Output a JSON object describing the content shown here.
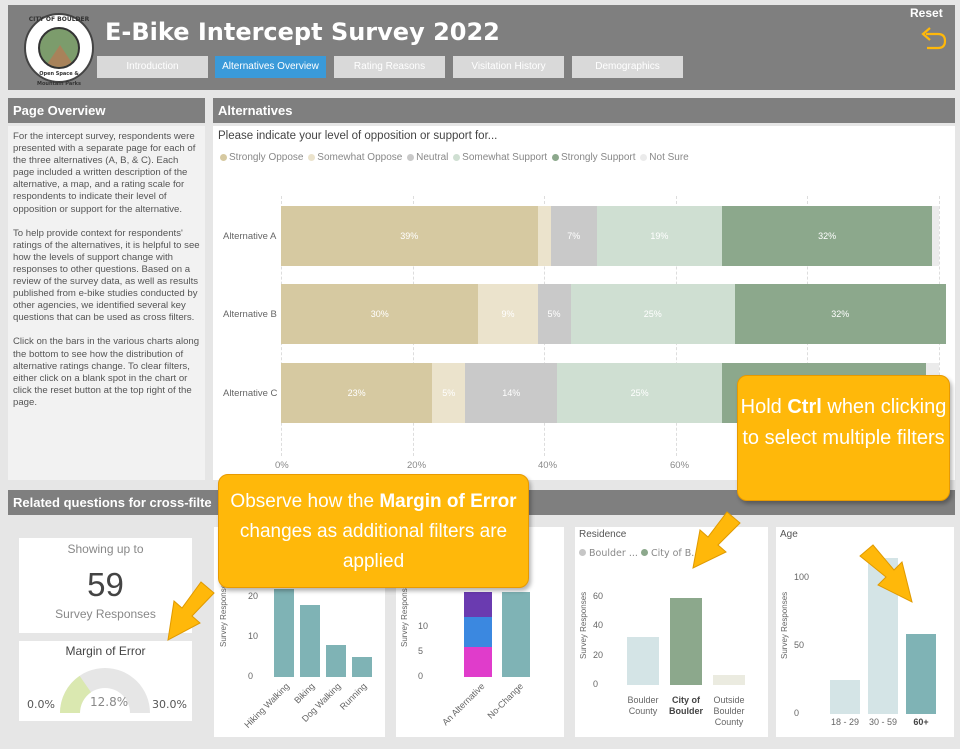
{
  "header": {
    "title": "E-Bike Intercept Survey 2022",
    "logo_text_top": "CITY OF BOULDER",
    "logo_text_bottom": "Open Space & Mountain Parks",
    "tabs": [
      {
        "label": "Introduction",
        "active": false
      },
      {
        "label": "Alternatives Overview",
        "active": true
      },
      {
        "label": "Rating Reasons",
        "active": false
      },
      {
        "label": "Visitation History",
        "active": false
      },
      {
        "label": "Demographics",
        "active": false
      }
    ],
    "reset_label": "Reset",
    "reset_icon": "undo-arrow-icon"
  },
  "overview": {
    "title": "Page Overview",
    "paragraphs": [
      "For the intercept survey, respondents were presented with a separate page for each of the three alternatives (A, B, & C). Each page included a written description of the alternative, a map, and a rating scale for respondents to indicate their level of opposition or support for the alternative.",
      "To help provide context for respondents' ratings of the alternatives, it is helpful to see how the levels of support change with responses to other questions. Based on a review of the survey data, as well as results published from e-bike studies conducted by other agencies, we identified several key questions that can be used as cross filters.",
      "Click on the bars in the various charts along the bottom to see how the distribution of alternative ratings change. To clear filters, either click on a blank spot in the chart or click the reset button at the top right of the page."
    ]
  },
  "alternatives": {
    "title": "Alternatives",
    "question": "Please indicate your level of opposition or support for...",
    "legend": [
      {
        "label": "Strongly Oppose",
        "color": "#d6c9a1"
      },
      {
        "label": "Somewhat Oppose",
        "color": "#ebe3cc"
      },
      {
        "label": "Neutral",
        "color": "#c9c9c9"
      },
      {
        "label": "Somewhat Support",
        "color": "#cfdfd2"
      },
      {
        "label": "Strongly Support",
        "color": "#8ca88c"
      },
      {
        "label": "Not Sure",
        "color": "#ebebeb"
      }
    ],
    "x_ticks": [
      "0%",
      "20%",
      "40%",
      "60%"
    ]
  },
  "chart_data": [
    {
      "type": "bar",
      "orientation": "horizontal-stacked-100",
      "title": "Please indicate your level of opposition or support for...",
      "categories": [
        "Alternative A",
        "Alternative B",
        "Alternative C"
      ],
      "series": [
        {
          "name": "Strongly Oppose",
          "values": [
            39,
            30,
            23
          ],
          "labels": [
            "39%",
            "30%",
            "23%"
          ]
        },
        {
          "name": "Somewhat Oppose",
          "values": [
            2,
            9,
            5
          ],
          "labels": [
            "",
            "9%",
            "5%"
          ]
        },
        {
          "name": "Neutral",
          "values": [
            7,
            5,
            14
          ],
          "labels": [
            "7%",
            "5%",
            "14%"
          ]
        },
        {
          "name": "Somewhat Support",
          "values": [
            19,
            25,
            25
          ],
          "labels": [
            "19%",
            "25%",
            "25%"
          ]
        },
        {
          "name": "Strongly Support",
          "values": [
            32,
            32,
            31
          ],
          "labels": [
            "32%",
            "32%",
            ""
          ]
        },
        {
          "name": "Not Sure",
          "values": [
            1,
            0,
            2
          ],
          "labels": [
            "",
            "",
            ""
          ]
        }
      ]
    },
    {
      "type": "bar",
      "title": "",
      "ylabel": "Survey Responses",
      "categories": [
        "Hiking Walking",
        "Biking",
        "Dog Walking",
        "Running"
      ],
      "values": [
        22,
        18,
        8,
        5
      ],
      "y_ticks": [
        "0",
        "10",
        "20"
      ],
      "ylim": [
        0,
        25
      ]
    },
    {
      "type": "bar",
      "title": "",
      "ylabel": "Survey Responses",
      "categories": [
        "An Alternative",
        "No-Change"
      ],
      "stacks": [
        {
          "category": "An Alternative",
          "segments": [
            {
              "value": 6,
              "color": "#e03ccb"
            },
            {
              "value": 6,
              "color": "#3b88e0"
            },
            {
              "value": 5,
              "color": "#6a3bb0"
            }
          ]
        },
        {
          "category": "No-Change",
          "segments": [
            {
              "value": 17,
              "color": "#7fb3b5"
            }
          ]
        }
      ],
      "y_ticks": [
        "0",
        "5",
        "10"
      ],
      "ylim": [
        0,
        19
      ]
    },
    {
      "type": "bar",
      "title": "Residence",
      "legend": [
        "Boulder ...",
        "City of B..."
      ],
      "ylabel": "Survey Responses",
      "categories": [
        "Boulder County",
        "City of Boulder",
        "Outside Boulder County"
      ],
      "values": [
        33,
        59,
        7
      ],
      "y_ticks": [
        "0",
        "20",
        "40",
        "60"
      ],
      "ylim": [
        0,
        65
      ]
    },
    {
      "type": "bar",
      "title": "Age",
      "ylabel": "Survey Responses",
      "categories": [
        "18 - 29",
        "30 - 59",
        "60+"
      ],
      "values": [
        25,
        115,
        59
      ],
      "y_ticks": [
        "0",
        "50",
        "100"
      ],
      "ylim": [
        0,
        120
      ]
    }
  ],
  "related": {
    "title": "Related questions for cross-filte",
    "kpi": {
      "top": "Showing up to",
      "value": "59",
      "bottom": "Survey Responses"
    },
    "moe": {
      "title": "Margin of Error",
      "value": "12.8%",
      "min": "0.0%",
      "max": "30.0%"
    },
    "residence_cats": [
      "Boulder\nCounty",
      "City of\nBoulder",
      "Outside\nBoulder\nCounty"
    ],
    "age_cats": [
      "18 - 29",
      "30 - 59",
      "60+"
    ]
  },
  "callouts": {
    "ctrl_pre": "Hold ",
    "ctrl_bold": "Ctrl",
    "ctrl_post": " when clicking to select multiple filters",
    "moe_pre": "Observe how the ",
    "moe_bold": "Margin of Error",
    "moe_post": " changes as additional filters are applied"
  }
}
